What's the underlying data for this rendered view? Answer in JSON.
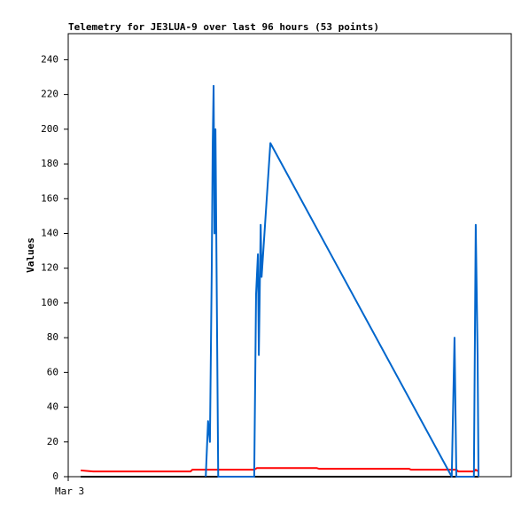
{
  "chart_data": {
    "type": "line",
    "title": "Telemetry for JE3LUA-9 over last 96 hours (53 points)",
    "y_label": "Values",
    "xlim": [
      0,
      96
    ],
    "xticks": [
      {
        "value": 0,
        "label": "Mar 3"
      }
    ],
    "ylim": [
      0,
      255
    ],
    "yticks": [
      0,
      20,
      40,
      60,
      80,
      100,
      120,
      140,
      160,
      180,
      200,
      220,
      240
    ],
    "grid": false,
    "series": [
      {
        "color": "#000000",
        "x": [
          2.7,
          88.9
        ],
        "values": [
          0,
          0
        ]
      },
      {
        "color": "#ff0000",
        "x": [
          2.7,
          5.4,
          26.5,
          26.9,
          40.3,
          40.9,
          53.8,
          54.4,
          73.9,
          74.3,
          84.1,
          84.5,
          87.9,
          88.3,
          88.9
        ],
        "values": [
          3.6,
          3,
          3,
          4,
          4,
          5,
          5,
          4.5,
          4.5,
          4,
          4,
          3,
          3,
          4,
          3
        ]
      },
      {
        "color": "#0066cc",
        "x": [
          29.8,
          30.3,
          30.7,
          31.1,
          31.3,
          31.5,
          31.7,
          31.9,
          32.5,
          40.3,
          40.7,
          41.1,
          41.3,
          41.7,
          41.9,
          43.8,
          83.1,
          83.7,
          84.1,
          87.9,
          88.3,
          88.7,
          88.9
        ],
        "values": [
          0,
          32,
          20,
          120,
          190,
          225,
          140,
          200,
          0,
          0,
          105,
          128,
          70,
          145,
          115,
          192,
          0,
          80,
          0,
          0,
          145,
          70,
          0
        ]
      }
    ]
  }
}
